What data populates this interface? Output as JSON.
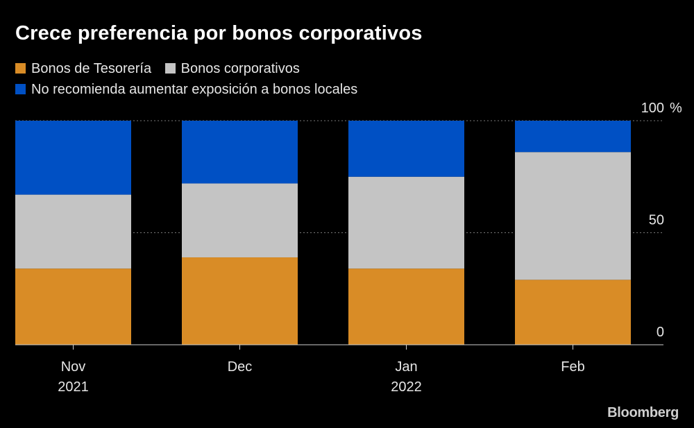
{
  "chart_data": {
    "type": "bar",
    "stacked": true,
    "title": "Crece preferencia por bonos corporativos",
    "categories": [
      "Nov",
      "Dec",
      "Jan",
      "Feb"
    ],
    "category_sublabels": [
      "2021",
      "",
      "2022",
      ""
    ],
    "series": [
      {
        "name": "Bonos de Tesorería",
        "values": [
          34,
          39,
          34,
          29
        ],
        "color": "#D98C26"
      },
      {
        "name": "Bonos corporativos",
        "values": [
          33,
          33,
          41,
          57
        ],
        "color": "#C4C4C4"
      },
      {
        "name": "No recomienda aumentar exposición a bonos locales",
        "values": [
          33,
          28,
          25,
          14
        ],
        "color": "#0050C4"
      }
    ],
    "ylim": [
      0,
      100
    ],
    "yticks": [
      0,
      50,
      100
    ],
    "y_unit": "%",
    "y_axis_position": "right",
    "grid": "dotted horizontal",
    "legend_placement": "top-left"
  },
  "source": {
    "brand": "Bloomberg"
  }
}
